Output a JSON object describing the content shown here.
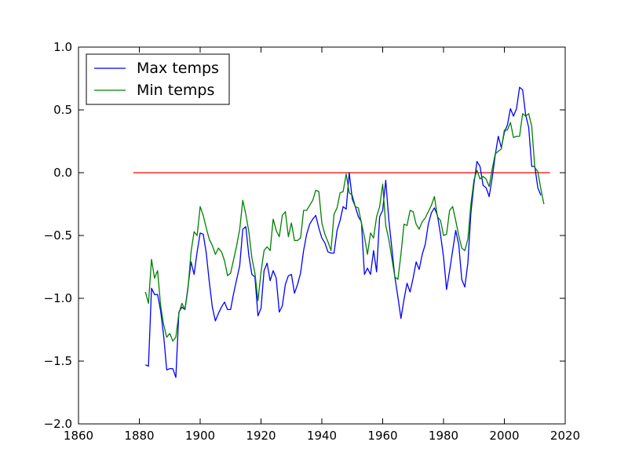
{
  "chart_data": {
    "type": "line",
    "title": "",
    "xlabel": "",
    "ylabel": "",
    "xlim": [
      1860,
      2020
    ],
    "ylim": [
      -2.0,
      1.0
    ],
    "grid": false,
    "legend_position": "top-left",
    "x_ticks": [
      1860,
      1880,
      1900,
      1920,
      1940,
      1960,
      1980,
      2000,
      2020
    ],
    "y_ticks": [
      -2.0,
      -1.5,
      -1.0,
      -0.5,
      0.0,
      0.5,
      1.0
    ],
    "x_tick_labels": [
      "1860",
      "1880",
      "1900",
      "1920",
      "1940",
      "1960",
      "1980",
      "2000",
      "2020"
    ],
    "y_tick_labels": [
      "−2.0",
      "−1.5",
      "−1.0",
      "−0.5",
      "0.0",
      "0.5",
      "1.0"
    ],
    "reference_line": {
      "y": 0.0,
      "x_range": [
        1878,
        2015
      ],
      "color": "#ff0000"
    },
    "series": [
      {
        "name": "Max temps",
        "color": "#0000ff",
        "x_start": 1882,
        "values": [
          -1.53,
          -1.54,
          -0.92,
          -0.97,
          -0.97,
          -1.1,
          -1.3,
          -1.57,
          -1.56,
          -1.56,
          -1.63,
          -1.11,
          -1.07,
          -1.09,
          -0.91,
          -0.71,
          -0.81,
          -0.63,
          -0.48,
          -0.49,
          -0.64,
          -0.87,
          -1.07,
          -1.18,
          -1.12,
          -1.07,
          -1.03,
          -1.09,
          -1.09,
          -0.96,
          -0.85,
          -0.74,
          -0.45,
          -0.43,
          -0.66,
          -0.81,
          -0.83,
          -1.14,
          -1.08,
          -0.78,
          -0.72,
          -0.86,
          -0.78,
          -0.84,
          -1.11,
          -1.06,
          -0.89,
          -0.82,
          -0.81,
          -0.96,
          -0.89,
          -0.8,
          -0.62,
          -0.49,
          -0.41,
          -0.37,
          -0.34,
          -0.44,
          -0.52,
          -0.56,
          -0.63,
          -0.64,
          -0.64,
          -0.46,
          -0.38,
          -0.27,
          -0.29,
          0.0,
          -0.21,
          -0.27,
          -0.35,
          -0.39,
          -0.81,
          -0.76,
          -0.81,
          -0.62,
          -0.79,
          -0.35,
          -0.3,
          -0.06,
          -0.37,
          -0.6,
          -0.83,
          -0.99,
          -1.16,
          -1.01,
          -0.88,
          -0.95,
          -0.84,
          -0.71,
          -0.77,
          -0.65,
          -0.57,
          -0.41,
          -0.32,
          -0.28,
          -0.34,
          -0.49,
          -0.67,
          -0.93,
          -0.78,
          -0.62,
          -0.46,
          -0.57,
          -0.85,
          -0.91,
          -0.72,
          -0.32,
          -0.09,
          0.09,
          0.05,
          -0.1,
          -0.12,
          -0.19,
          -0.04,
          0.14,
          0.29,
          0.2,
          0.32,
          0.38,
          0.51,
          0.45,
          0.51,
          0.68,
          0.66,
          0.46,
          0.36,
          0.05,
          0.05,
          -0.12,
          -0.18
        ]
      },
      {
        "name": "Min temps",
        "color": "#008000",
        "x_start": 1882,
        "values": [
          -0.95,
          -1.04,
          -0.69,
          -0.84,
          -0.78,
          -1.06,
          -1.21,
          -1.31,
          -1.28,
          -1.34,
          -1.31,
          -1.12,
          -1.04,
          -1.09,
          -0.92,
          -0.63,
          -0.47,
          -0.5,
          -0.27,
          -0.34,
          -0.44,
          -0.53,
          -0.58,
          -0.65,
          -0.6,
          -0.63,
          -0.7,
          -0.82,
          -0.8,
          -0.69,
          -0.58,
          -0.45,
          -0.22,
          -0.33,
          -0.47,
          -0.68,
          -0.8,
          -1.02,
          -0.79,
          -0.62,
          -0.59,
          -0.62,
          -0.37,
          -0.46,
          -0.51,
          -0.34,
          -0.31,
          -0.51,
          -0.4,
          -0.54,
          -0.54,
          -0.52,
          -0.3,
          -0.3,
          -0.26,
          -0.22,
          -0.14,
          -0.15,
          -0.4,
          -0.49,
          -0.55,
          -0.62,
          -0.33,
          -0.28,
          -0.16,
          -0.15,
          -0.01,
          -0.16,
          -0.18,
          -0.27,
          -0.28,
          -0.4,
          -0.51,
          -0.65,
          -0.48,
          -0.52,
          -0.35,
          -0.27,
          -0.09,
          -0.42,
          -0.53,
          -0.68,
          -0.83,
          -0.85,
          -0.65,
          -0.41,
          -0.42,
          -0.3,
          -0.31,
          -0.41,
          -0.45,
          -0.39,
          -0.36,
          -0.31,
          -0.26,
          -0.19,
          -0.35,
          -0.38,
          -0.5,
          -0.49,
          -0.3,
          -0.27,
          -0.38,
          -0.5,
          -0.6,
          -0.62,
          -0.53,
          -0.25,
          -0.06,
          0.02,
          -0.05,
          -0.03,
          -0.05,
          -0.11,
          0.03,
          0.15,
          0.17,
          0.19,
          0.34,
          0.34,
          0.4,
          0.28,
          0.29,
          0.29,
          0.47,
          0.45,
          0.47,
          0.37,
          0.04,
          0.01,
          -0.13,
          -0.25
        ]
      }
    ]
  }
}
